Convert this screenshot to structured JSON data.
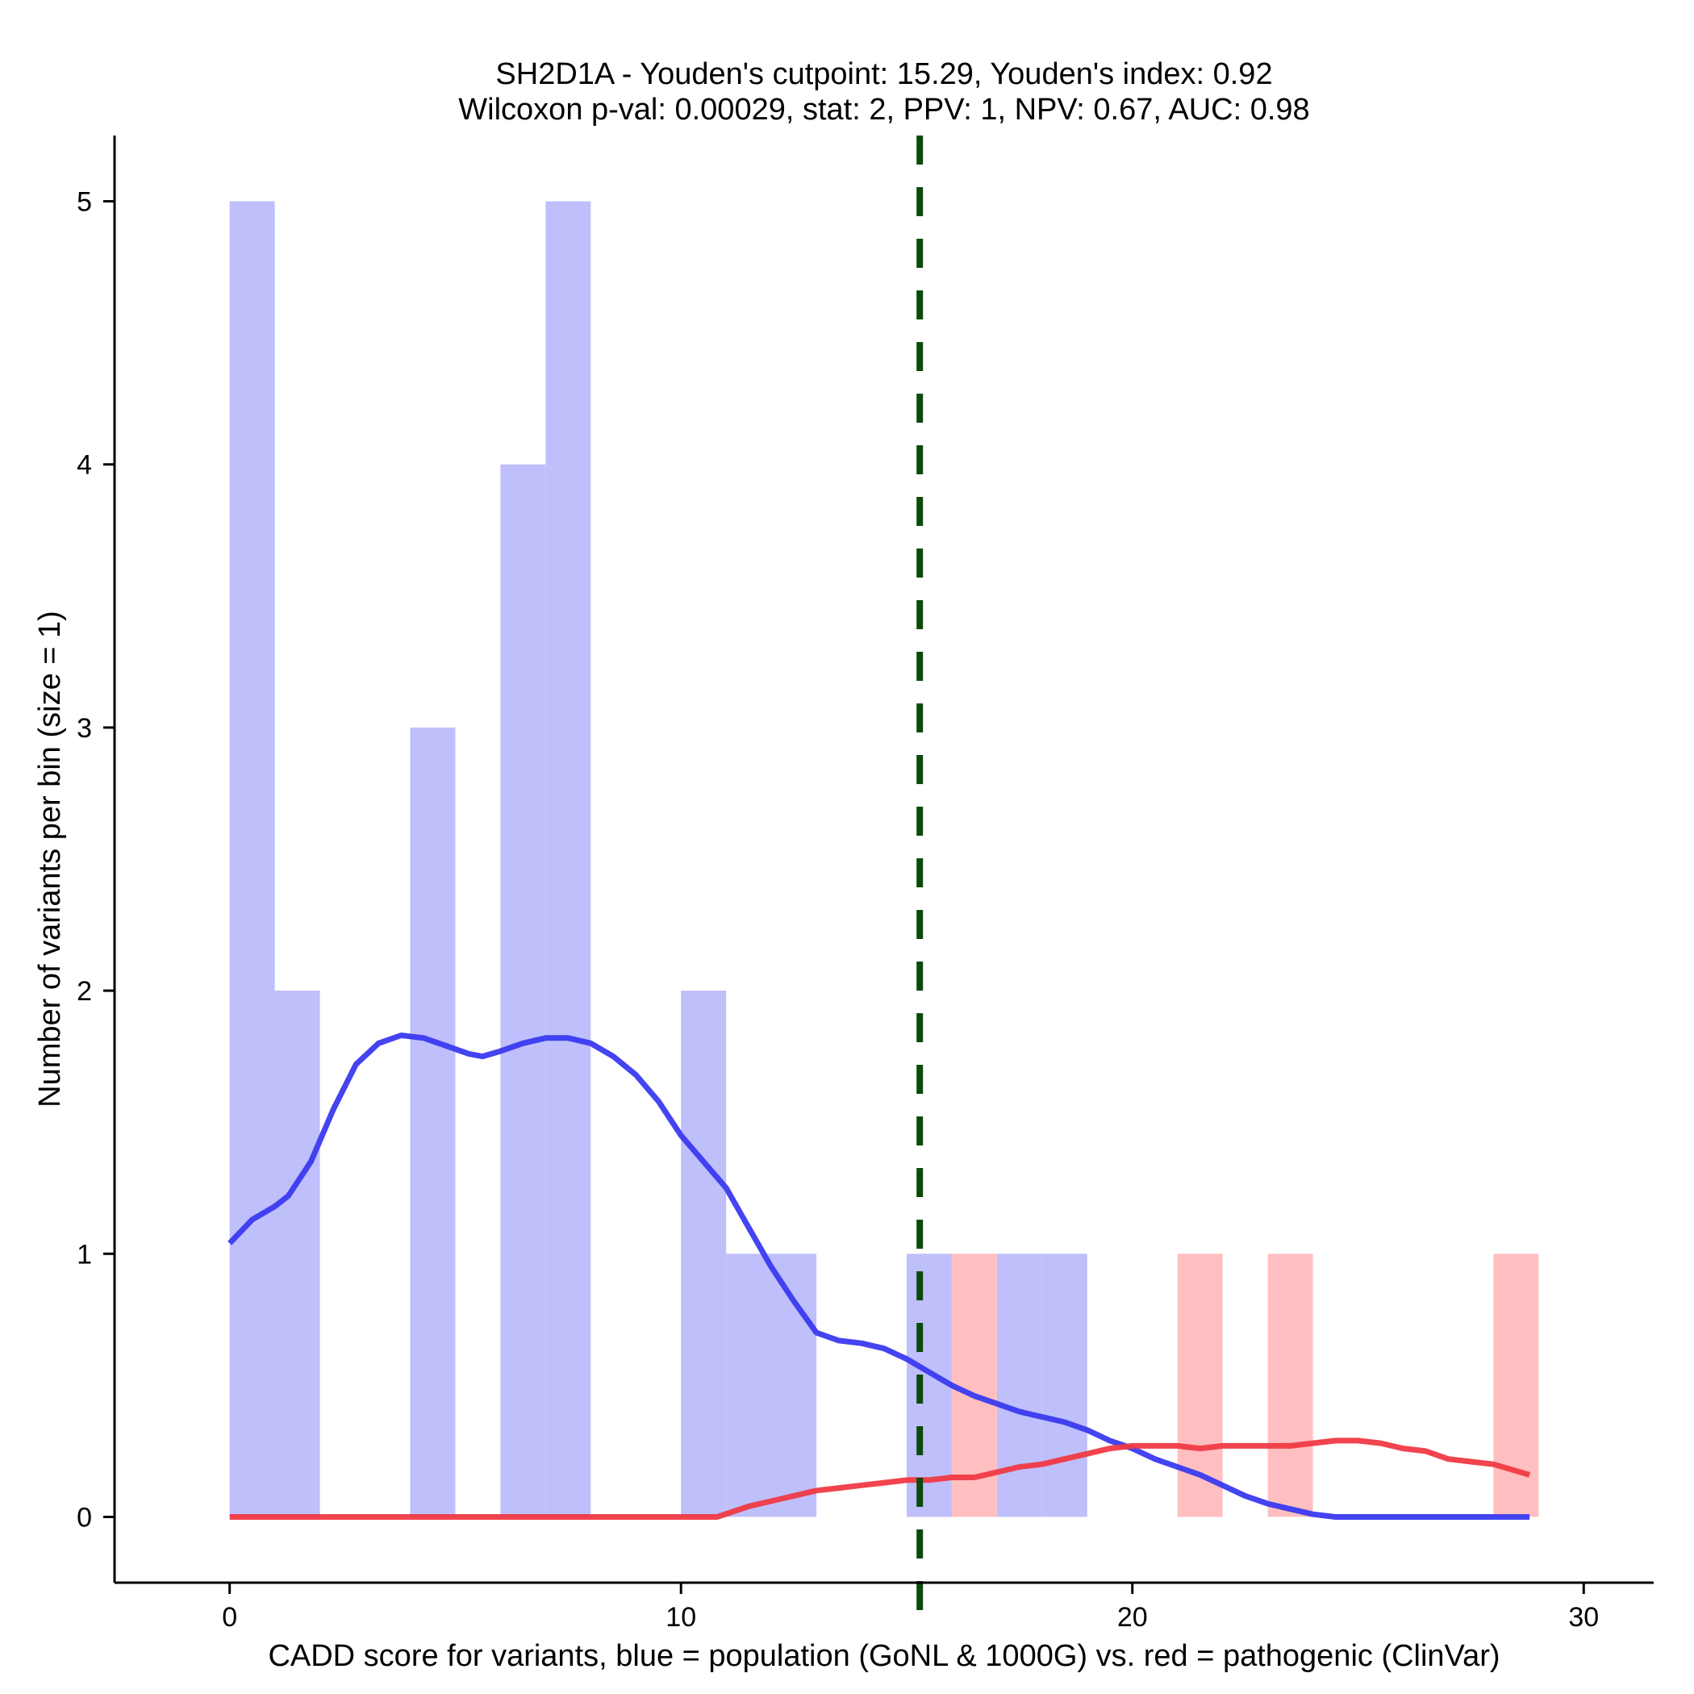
{
  "chart_data": {
    "type": "bar",
    "title": "SH2D1A - Youden's cutpoint: 15.29, Youden's index: 0.92",
    "subtitle": "Wilcoxon p-val: 0.00029, stat: 2, PPV: 1, NPV: 0.67, AUC: 0.98",
    "xlabel": "CADD score for variants, blue = population (GoNL & 1000G) vs. red = pathogenic (ClinVar)",
    "ylabel": "Number of variants per bin (size = 1)",
    "xlim": [
      -2.55,
      31.55
    ],
    "ylim": [
      -0.25,
      5.25
    ],
    "x_ticks": [
      0,
      10,
      20,
      30
    ],
    "y_ticks": [
      0,
      1,
      2,
      3,
      4,
      5
    ],
    "cutpoint": 15.29,
    "bin_width": 1,
    "series": [
      {
        "name": "population (GoNL & 1000G)",
        "color": "#bfbffb",
        "bins": [
          {
            "x0": 0,
            "count": 5
          },
          {
            "x0": 1,
            "count": 2
          },
          {
            "x0": 4,
            "count": 3
          },
          {
            "x0": 6,
            "count": 4
          },
          {
            "x0": 7,
            "count": 5
          },
          {
            "x0": 10,
            "count": 2
          },
          {
            "x0": 11,
            "count": 1
          },
          {
            "x0": 12,
            "count": 1
          },
          {
            "x0": 15,
            "count": 1
          },
          {
            "x0": 17,
            "count": 1
          },
          {
            "x0": 18,
            "count": 1
          }
        ]
      },
      {
        "name": "pathogenic (ClinVar)",
        "color": "#ffbfc1",
        "bins": [
          {
            "x0": 16,
            "count": 1
          },
          {
            "x0": 21,
            "count": 1
          },
          {
            "x0": 23,
            "count": 1
          },
          {
            "x0": 28,
            "count": 1
          }
        ]
      }
    ],
    "density_lines": [
      {
        "name": "population density",
        "color": "#3a3af0",
        "x": [
          0,
          0.5,
          1,
          1.3,
          1.8,
          2.3,
          2.8,
          3.3,
          3.8,
          4.3,
          4.8,
          5.3,
          5.6,
          6,
          6.5,
          7,
          7.5,
          8,
          8.5,
          9,
          9.5,
          10,
          10.5,
          11,
          11.5,
          12,
          12.5,
          13,
          13.5,
          14,
          14.5,
          15,
          15.5,
          16,
          16.5,
          17,
          17.5,
          18,
          18.5,
          19,
          19.5,
          20,
          20.5,
          21,
          21.5,
          22,
          22.5,
          23,
          23.5,
          24,
          24.5,
          25,
          26,
          27,
          28,
          28.8
        ],
        "y": [
          1.04,
          1.13,
          1.18,
          1.22,
          1.35,
          1.55,
          1.72,
          1.8,
          1.83,
          1.82,
          1.79,
          1.76,
          1.75,
          1.77,
          1.8,
          1.82,
          1.82,
          1.8,
          1.75,
          1.68,
          1.58,
          1.45,
          1.35,
          1.25,
          1.1,
          0.95,
          0.82,
          0.7,
          0.67,
          0.66,
          0.64,
          0.6,
          0.55,
          0.5,
          0.46,
          0.43,
          0.4,
          0.38,
          0.36,
          0.33,
          0.29,
          0.26,
          0.22,
          0.19,
          0.16,
          0.12,
          0.08,
          0.05,
          0.03,
          0.01,
          0,
          0,
          0,
          0,
          0,
          0
        ]
      },
      {
        "name": "pathogenic density",
        "color": "#f03a45",
        "x": [
          0,
          2,
          4,
          6,
          8,
          10,
          10.8,
          11.5,
          12,
          12.5,
          13,
          13.5,
          14,
          14.5,
          15,
          15.5,
          16,
          16.5,
          17,
          17.5,
          18,
          18.5,
          19,
          19.5,
          20,
          20.5,
          21,
          21.5,
          22,
          22.5,
          23,
          23.5,
          24,
          24.5,
          25,
          25.5,
          26,
          26.5,
          27,
          27.5,
          28,
          28.8
        ],
        "y": [
          0,
          0,
          0,
          0,
          0,
          0,
          0,
          0.04,
          0.06,
          0.08,
          0.1,
          0.11,
          0.12,
          0.13,
          0.14,
          0.14,
          0.15,
          0.15,
          0.17,
          0.19,
          0.2,
          0.22,
          0.24,
          0.26,
          0.27,
          0.27,
          0.27,
          0.26,
          0.27,
          0.27,
          0.27,
          0.27,
          0.28,
          0.29,
          0.29,
          0.28,
          0.26,
          0.25,
          0.22,
          0.21,
          0.2,
          0.16
        ]
      }
    ],
    "cutpoint_color": "#0a4a0a"
  }
}
